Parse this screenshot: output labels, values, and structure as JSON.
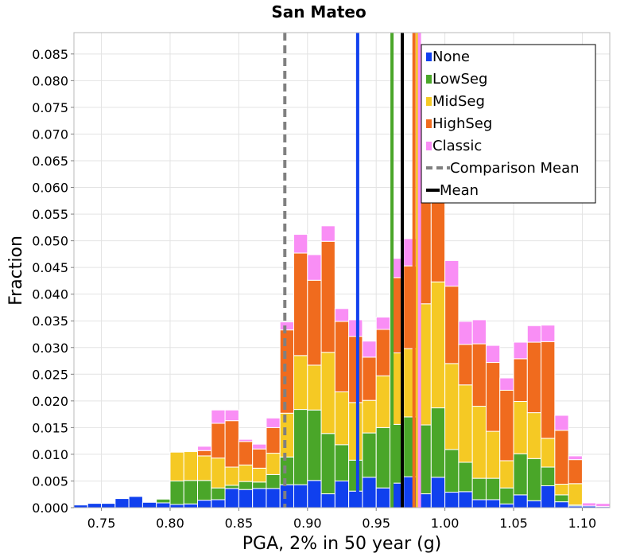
{
  "chart_data": {
    "type": "bar",
    "subtype": "stacked-histogram",
    "title": "San Mateo",
    "xlabel": "PGA, 2% in 50 year (g)",
    "ylabel": "Fraction",
    "xlim": [
      0.73,
      1.12
    ],
    "ylim": [
      0.0,
      0.089
    ],
    "bin_width": 0.01,
    "grid": true,
    "legend_position": "top-right",
    "xticks": [
      0.75,
      0.8,
      0.85,
      0.9,
      0.95,
      1.0,
      1.05,
      1.1
    ],
    "xtick_labels": [
      "0.75",
      "0.80",
      "0.85",
      "0.90",
      "0.95",
      "1.00",
      "1.05",
      "1.10"
    ],
    "yticks": [
      0.0,
      0.005,
      0.01,
      0.015,
      0.02,
      0.025,
      0.03,
      0.035,
      0.04,
      0.045,
      0.05,
      0.055,
      0.06,
      0.065,
      0.07,
      0.075,
      0.08,
      0.085
    ],
    "ytick_labels": [
      "0.000",
      "0.005",
      "0.010",
      "0.015",
      "0.020",
      "0.025",
      "0.030",
      "0.035",
      "0.040",
      "0.045",
      "0.050",
      "0.055",
      "0.060",
      "0.065",
      "0.070",
      "0.075",
      "0.080",
      "0.085"
    ],
    "x": [
      0.735,
      0.745,
      0.755,
      0.765,
      0.775,
      0.785,
      0.795,
      0.805,
      0.815,
      0.825,
      0.835,
      0.845,
      0.855,
      0.865,
      0.875,
      0.885,
      0.895,
      0.905,
      0.915,
      0.925,
      0.935,
      0.945,
      0.955,
      0.965,
      0.975,
      0.985,
      0.995,
      1.005,
      1.015,
      1.025,
      1.035,
      1.045,
      1.055,
      1.065,
      1.075,
      1.085,
      1.095,
      1.105,
      1.115
    ],
    "series": [
      {
        "name": "None",
        "color": "#1040ee",
        "values": [
          0.0005,
          0.0008,
          0.0008,
          0.0017,
          0.0021,
          0.001,
          0.0009,
          0.0006,
          0.0007,
          0.0014,
          0.0015,
          0.0036,
          0.0034,
          0.0036,
          0.0036,
          0.0043,
          0.0043,
          0.0051,
          0.0026,
          0.005,
          0.0031,
          0.0057,
          0.0037,
          0.0046,
          0.0058,
          0.0026,
          0.0057,
          0.0029,
          0.003,
          0.0015,
          0.0015,
          0.0007,
          0.0024,
          0.0013,
          0.0041,
          0.0011,
          0.0003,
          0.0003,
          0.0002
        ]
      },
      {
        "name": "LowSeg",
        "color": "#4aa629",
        "values": [
          0,
          0,
          0,
          0,
          0,
          0,
          0.0007,
          0.0044,
          0.0044,
          0.0037,
          0.0022,
          0.0006,
          0.0015,
          0.0012,
          0.0026,
          0.0052,
          0.0141,
          0.0132,
          0.0113,
          0.0068,
          0.0058,
          0.0083,
          0.0113,
          0.011,
          0.0112,
          0.0129,
          0.013,
          0.008,
          0.0055,
          0.004,
          0.004,
          0.003,
          0.0077,
          0.0079,
          0.0035,
          0.0013,
          0.0002,
          0,
          0
        ]
      },
      {
        "name": "MidSeg",
        "color": "#f5c924",
        "values": [
          0,
          0,
          0,
          0,
          0,
          0,
          0,
          0.0054,
          0.0054,
          0.0046,
          0.0056,
          0.0034,
          0.0031,
          0.0026,
          0.004,
          0.0082,
          0.0101,
          0.0084,
          0.0152,
          0.0099,
          0.0108,
          0.0061,
          0.0097,
          0.0134,
          0.0128,
          0.0227,
          0.0236,
          0.0161,
          0.0145,
          0.0135,
          0.0088,
          0.0051,
          0.0098,
          0.0086,
          0.0054,
          0.002,
          0.004,
          0,
          0
        ]
      },
      {
        "name": "HighSeg",
        "color": "#f06b1e",
        "values": [
          0,
          0,
          0,
          0,
          0,
          0,
          0,
          0,
          0,
          0.001,
          0.0065,
          0.0087,
          0.0044,
          0.0036,
          0.0048,
          0.0156,
          0.0192,
          0.0159,
          0.0208,
          0.0132,
          0.0124,
          0.0081,
          0.0087,
          0.0141,
          0.0155,
          0.021,
          0.0157,
          0.0145,
          0.0076,
          0.0117,
          0.0129,
          0.0132,
          0.008,
          0.0132,
          0.0181,
          0.0101,
          0.0045,
          0,
          0
        ]
      },
      {
        "name": "Classic",
        "color": "#f98ef5",
        "values": [
          0,
          0,
          0,
          0,
          0,
          0,
          0,
          0,
          0,
          0.0008,
          0.0025,
          0.002,
          0.0004,
          0.0009,
          0.0018,
          0.0015,
          0.0035,
          0.0048,
          0.0029,
          0.0024,
          0.0031,
          0.003,
          0.0023,
          0.0036,
          0.0051,
          0.0069,
          0.0062,
          0.0048,
          0.0043,
          0.0045,
          0.0032,
          0.0023,
          0.0031,
          0.0031,
          0.0031,
          0.0028,
          0.0007,
          0.0006,
          0.0006
        ]
      }
    ],
    "vertical_lines": [
      {
        "label": "None",
        "x": 0.9365,
        "color": "#1040ee",
        "style": "solid"
      },
      {
        "label": "LowSeg",
        "x": 0.9615,
        "color": "#4aa629",
        "style": "solid"
      },
      {
        "label": "HighSeg",
        "x": 0.9775,
        "color": "#f06b1e",
        "style": "solid"
      },
      {
        "label": "MidSeg",
        "x": 0.98,
        "color": "#f5c924",
        "style": "solid"
      },
      {
        "label": "Classic",
        "x": 0.9815,
        "color": "#f98ef5",
        "style": "solid"
      },
      {
        "label": "Mean",
        "x": 0.969,
        "color": "#000000",
        "style": "solid"
      },
      {
        "label": "Comparison Mean",
        "x": 0.8835,
        "color": "#808080",
        "style": "dashed"
      }
    ],
    "legend": [
      {
        "label": "None",
        "color": "#1040ee",
        "marker": "square"
      },
      {
        "label": "LowSeg",
        "color": "#4aa629",
        "marker": "square"
      },
      {
        "label": "MidSeg",
        "color": "#f5c924",
        "marker": "square"
      },
      {
        "label": "HighSeg",
        "color": "#f06b1e",
        "marker": "square"
      },
      {
        "label": "Classic",
        "color": "#f98ef5",
        "marker": "square"
      },
      {
        "label": "Comparison Mean",
        "color": "#808080",
        "marker": "dashed-line"
      },
      {
        "label": "Mean",
        "color": "#000000",
        "marker": "line"
      }
    ]
  }
}
